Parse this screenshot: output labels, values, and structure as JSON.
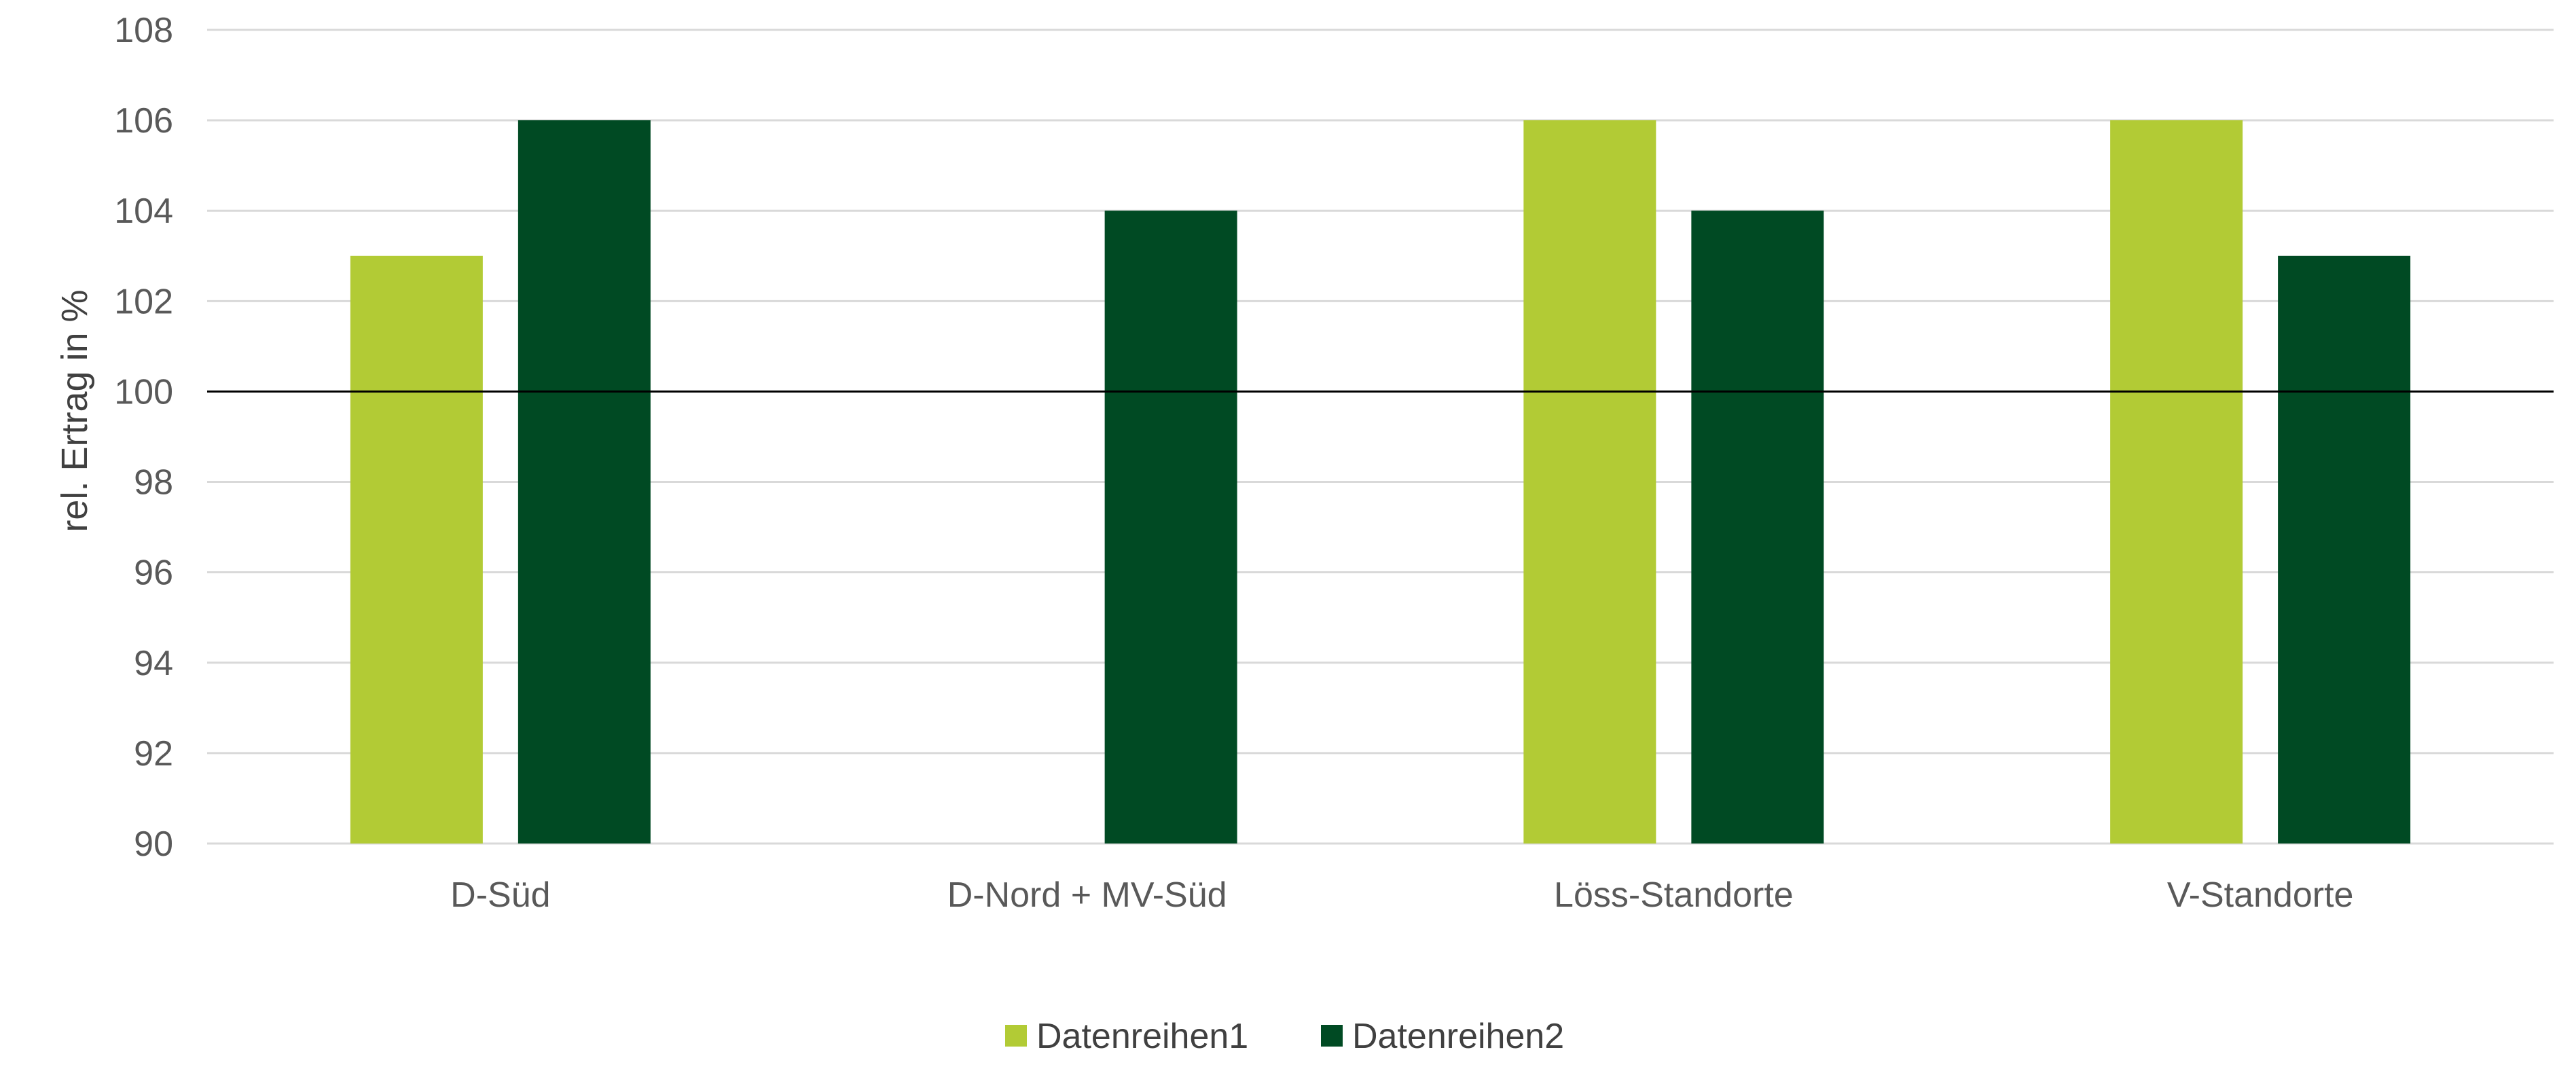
{
  "chart_data": {
    "type": "bar",
    "title": "",
    "xlabel": "",
    "ylabel": "rel. Ertrag in %",
    "ylim": [
      90,
      108
    ],
    "yticks": [
      "90",
      "92",
      "94",
      "96",
      "98",
      "100",
      "102",
      "104",
      "106",
      "108"
    ],
    "reference_line": 100,
    "categories": [
      "D-Süd",
      "D-Nord + MV-Süd",
      "Löss-Standorte",
      "V-Standorte"
    ],
    "series": [
      {
        "name": "Datenreihen1",
        "color": "#b2cb35",
        "values": [
          103,
          null,
          106,
          106
        ]
      },
      {
        "name": "Datenreihen2",
        "color": "#004a23",
        "values": [
          106,
          104,
          104,
          103
        ]
      }
    ],
    "grid": true,
    "legend_position": "bottom-center",
    "colors": {
      "grid": "#d9d9d9",
      "reference_line": "#000000",
      "tick_text": "#595959"
    }
  }
}
